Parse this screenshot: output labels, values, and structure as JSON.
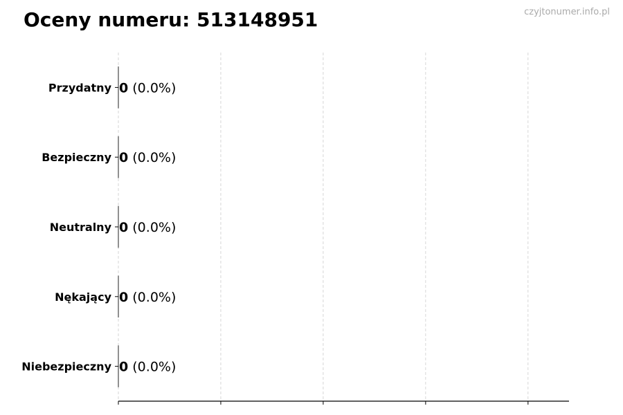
{
  "chart_data": {
    "type": "bar",
    "orientation": "horizontal",
    "title": "Oceny numeru: 513148951",
    "watermark": "czyjtonumer.info.pl",
    "categories": [
      "Przydatny",
      "Bezpieczny",
      "Neutralny",
      "Nękający",
      "Niebezpieczny"
    ],
    "values": [
      0,
      0,
      0,
      0,
      0
    ],
    "data_labels": [
      {
        "count": "0",
        "pct": "(0.0%)"
      },
      {
        "count": "0",
        "pct": "(0.0%)"
      },
      {
        "count": "0",
        "pct": "(0.0%)"
      },
      {
        "count": "0",
        "pct": "(0.0%)"
      },
      {
        "count": "0",
        "pct": "(0.0%)"
      }
    ],
    "xlim": [
      0,
      4.4
    ],
    "xticks": [
      0,
      1,
      2,
      3,
      4
    ],
    "xtick_labels_shown": false,
    "grid": "vertical dashed",
    "colors": {
      "grid": "#cccccc",
      "axis": "#000000",
      "watermark": "#aaaaaa"
    }
  }
}
